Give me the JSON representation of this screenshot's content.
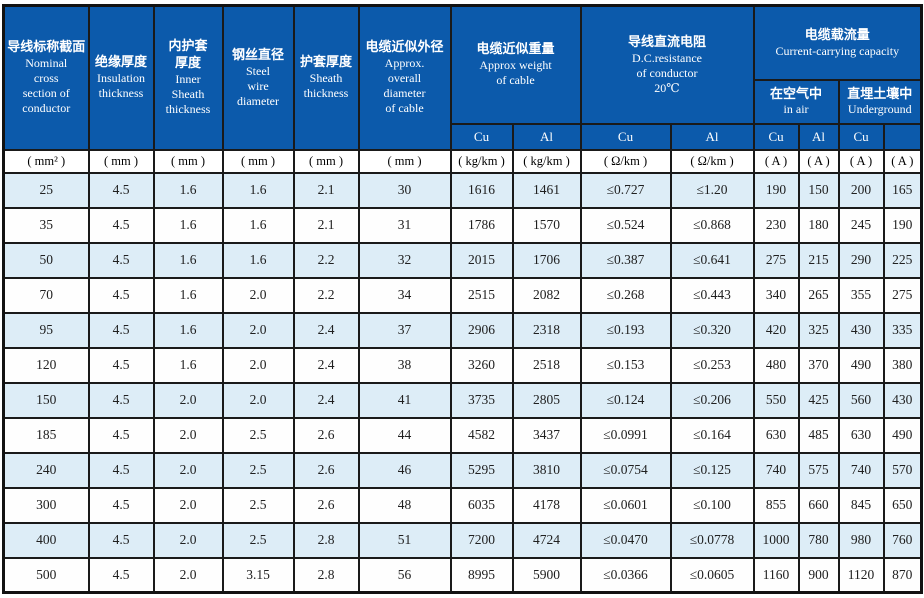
{
  "table": {
    "heads": [
      {
        "zh": "导线标称截面",
        "en": "Nominal\ncross\nsection of\nconductor"
      },
      {
        "zh": "绝缘厚度",
        "en": "Insulation\nthickness"
      },
      {
        "zh": "内护套\n厚度",
        "en": "Inner\nSheath\nthickness"
      },
      {
        "zh": "钢丝直径",
        "en": "Steel\nwire\ndiameter"
      },
      {
        "zh": "护套厚度",
        "en": "Sheath\nthickness"
      },
      {
        "zh": "电缆近似外径",
        "en": "Approx.\noverall\ndiameter\nof cable"
      }
    ],
    "weight": {
      "zh": "电缆近似重量",
      "en": "Approx weight\nof cable"
    },
    "resistance": {
      "zh": "导线直流电阻",
      "en": "D.C.resistance\nof conductor\n20℃"
    },
    "capacity": {
      "zh": "电缆载流量",
      "en": "Current-carrying capacity"
    },
    "in_air": {
      "zh": "在空气中",
      "en": "in air"
    },
    "underground": {
      "zh": "直埋土壤中",
      "en": "Underground"
    },
    "metal_row": [
      "Cu",
      "Al",
      "Cu",
      "Al",
      "Cu",
      "Al",
      "Cu",
      ""
    ],
    "units": [
      "( mm² )",
      "( mm )",
      "( mm )",
      "( mm )",
      "( mm )",
      "( mm )",
      "( kg/km )",
      "( kg/km )",
      "( Ω/km )",
      "( Ω/km )",
      "( A )",
      "( A )",
      "( A )",
      "( A )"
    ],
    "rows": [
      [
        "25",
        "4.5",
        "1.6",
        "1.6",
        "2.1",
        "30",
        "1616",
        "1461",
        "≤0.727",
        "≤1.20",
        "190",
        "150",
        "200",
        "165"
      ],
      [
        "35",
        "4.5",
        "1.6",
        "1.6",
        "2.1",
        "31",
        "1786",
        "1570",
        "≤0.524",
        "≤0.868",
        "230",
        "180",
        "245",
        "190"
      ],
      [
        "50",
        "4.5",
        "1.6",
        "1.6",
        "2.2",
        "32",
        "2015",
        "1706",
        "≤0.387",
        "≤0.641",
        "275",
        "215",
        "290",
        "225"
      ],
      [
        "70",
        "4.5",
        "1.6",
        "2.0",
        "2.2",
        "34",
        "2515",
        "2082",
        "≤0.268",
        "≤0.443",
        "340",
        "265",
        "355",
        "275"
      ],
      [
        "95",
        "4.5",
        "1.6",
        "2.0",
        "2.4",
        "37",
        "2906",
        "2318",
        "≤0.193",
        "≤0.320",
        "420",
        "325",
        "430",
        "335"
      ],
      [
        "120",
        "4.5",
        "1.6",
        "2.0",
        "2.4",
        "38",
        "3260",
        "2518",
        "≤0.153",
        "≤0.253",
        "480",
        "370",
        "490",
        "380"
      ],
      [
        "150",
        "4.5",
        "2.0",
        "2.0",
        "2.4",
        "41",
        "3735",
        "2805",
        "≤0.124",
        "≤0.206",
        "550",
        "425",
        "560",
        "430"
      ],
      [
        "185",
        "4.5",
        "2.0",
        "2.5",
        "2.6",
        "44",
        "4582",
        "3437",
        "≤0.0991",
        "≤0.164",
        "630",
        "485",
        "630",
        "490"
      ],
      [
        "240",
        "4.5",
        "2.0",
        "2.5",
        "2.6",
        "46",
        "5295",
        "3810",
        "≤0.0754",
        "≤0.125",
        "740",
        "575",
        "740",
        "570"
      ],
      [
        "300",
        "4.5",
        "2.0",
        "2.5",
        "2.6",
        "48",
        "6035",
        "4178",
        "≤0.0601",
        "≤0.100",
        "855",
        "660",
        "845",
        "650"
      ],
      [
        "400",
        "4.5",
        "2.0",
        "2.5",
        "2.8",
        "51",
        "7200",
        "4724",
        "≤0.0470",
        "≤0.0778",
        "1000",
        "780",
        "980",
        "760"
      ],
      [
        "500",
        "4.5",
        "2.0",
        "3.15",
        "2.8",
        "56",
        "8995",
        "5900",
        "≤0.0366",
        "≤0.0605",
        "1160",
        "900",
        "1120",
        "870"
      ]
    ],
    "colors": {
      "header_blue": "#0c5aab",
      "row_light_blue": "#ddedf7",
      "border": "#1a1a1a"
    }
  }
}
